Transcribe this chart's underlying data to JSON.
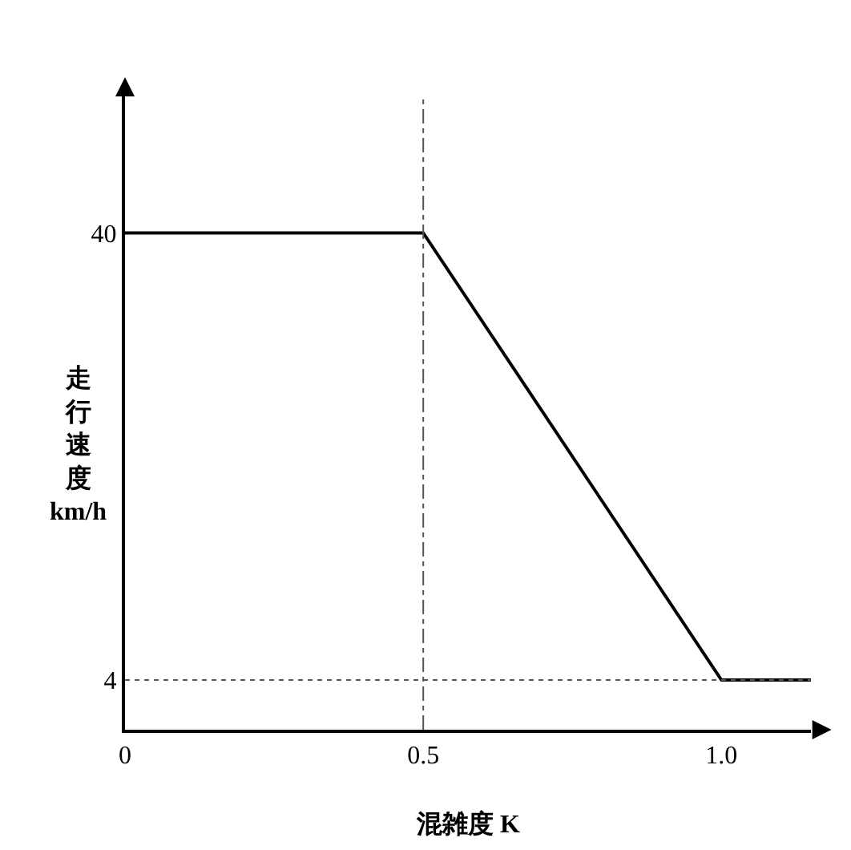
{
  "chart_data": {
    "type": "line",
    "xlabel": "混雑度 K",
    "ylabel": "走行速度 km/h",
    "x": [
      0,
      0.5,
      1.0,
      1.15
    ],
    "series": [
      {
        "color": "#000000",
        "values": [
          40,
          40,
          4,
          4
        ]
      }
    ],
    "xlim": [
      0,
      1.15
    ],
    "xticks": [
      0,
      0.5,
      {
        "value": 1.0,
        "label": "1.0"
      }
    ],
    "ylim": [
      0,
      51
    ],
    "yticks": [
      4,
      40
    ],
    "ref_lines": [
      {
        "axis": "y",
        "value": 4,
        "line_style": "dotted",
        "color": "#555555"
      },
      {
        "axis": "x",
        "value": 0.5,
        "line_style": "dashdot",
        "color": "#555555"
      }
    ],
    "marker": "none",
    "line_style": "solid"
  }
}
